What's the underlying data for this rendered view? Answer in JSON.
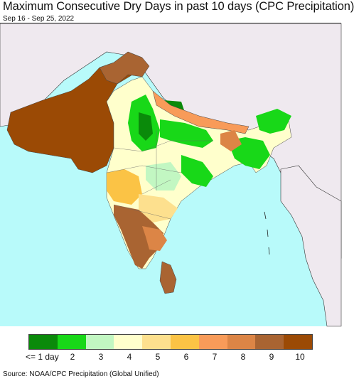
{
  "title": "Maximum Consecutive Dry Days in past 10 days (CPC Precipitation)",
  "date_range": "Sep 16 - Sep 25, 2022",
  "source": "Source: NOAA/CPC Precipitation (Global Unified)",
  "colors": {
    "ocean": "#b8fafa",
    "land_outside": "#efe9ef",
    "border": "#222222"
  },
  "legend": {
    "items": [
      {
        "label": "<= 1 day",
        "color": "#0a8a0a"
      },
      {
        "label": "2",
        "color": "#18d818"
      },
      {
        "label": "3",
        "color": "#c2f7c2"
      },
      {
        "label": "4",
        "color": "#ffffcc"
      },
      {
        "label": "5",
        "color": "#fde08e"
      },
      {
        "label": "6",
        "color": "#fbc345"
      },
      {
        "label": "7",
        "color": "#f89b59"
      },
      {
        "label": "8",
        "color": "#dc8546"
      },
      {
        "label": "9",
        "color": "#a96432"
      },
      {
        "label": "10",
        "color": "#9b4a05"
      }
    ]
  }
}
